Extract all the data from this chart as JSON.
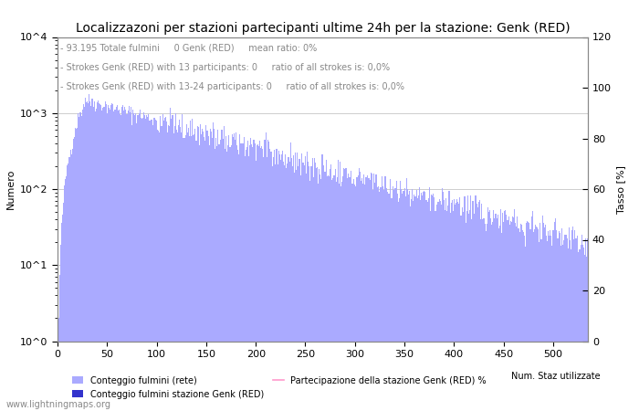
{
  "title": "Localizzazoni per stazioni partecipanti ultime 24h per la stazione: Genk (RED)",
  "subtitle_line1": "- 93.195 Totale fulmini     0 Genk (RED)     mean ratio: 0%",
  "subtitle_line2": "- Strokes Genk (RED) with 13 participants: 0     ratio of all strokes is: 0,0%",
  "subtitle_line3": "- Strokes Genk (RED) with 13-24 participants: 0     ratio of all strokes is: 0,0%",
  "ylabel_left": "Numero",
  "ylabel_right": "Tasso [%]",
  "watermark": "www.lightningmaps.org",
  "legend_label_main": "Conteggio fulmini (rete)",
  "legend_label_station": "Conteggio fulmini stazione Genk (RED)",
  "legend_label_participation": "Partecipazione della stazione Genk (RED) %",
  "legend_label_num": "Num. Staz utilizzate",
  "bar_color_main": "#aaaaff",
  "bar_color_station": "#3333cc",
  "line_color_participation": "#ff99cc",
  "background_color": "#ffffff",
  "xlim": [
    0,
    535
  ],
  "ylim_left": [
    1,
    10000
  ],
  "ylim_right": [
    0,
    120
  ],
  "grid_color": "#bbbbbb",
  "title_fontsize": 10,
  "subtitle_fontsize": 7,
  "axis_fontsize": 8,
  "tick_fontsize": 8,
  "yticks_right": [
    0,
    20,
    40,
    60,
    80,
    100,
    120
  ],
  "xticks": [
    0,
    50,
    100,
    150,
    200,
    250,
    300,
    350,
    400,
    450,
    500
  ]
}
